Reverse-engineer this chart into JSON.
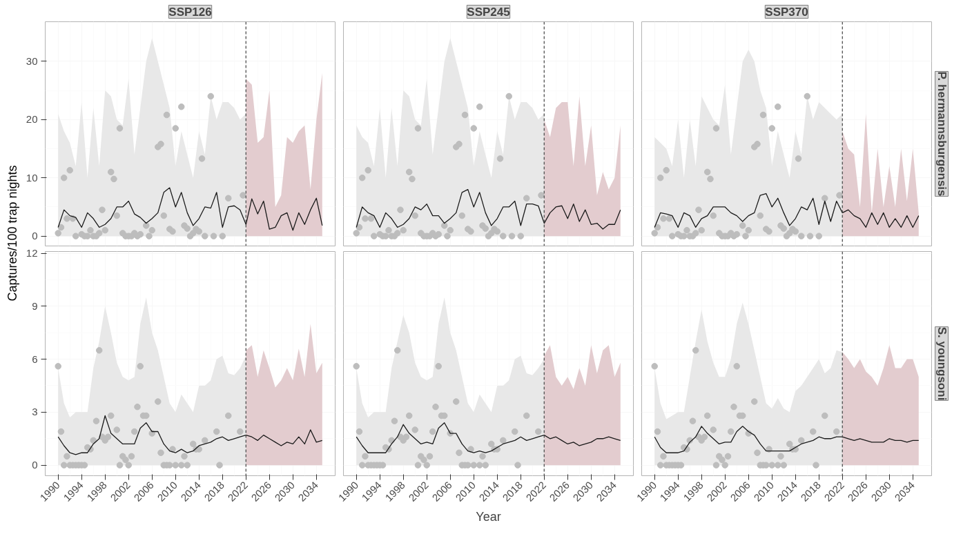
{
  "chart_data": [
    {
      "type": "line",
      "title": "SSP126",
      "ylabel": "Captures/100 trap nights",
      "xlim": [
        1987.8,
        2037.2
      ],
      "xticks": [
        1990,
        1994,
        1998,
        2002,
        2006,
        2010,
        2014,
        2018,
        2022,
        2026,
        2030,
        2034
      ],
      "ylim": [
        -1.7,
        36.8
      ],
      "yticks": [
        0,
        10,
        20,
        30
      ],
      "grid": true,
      "tick_labels": "y",
      "ref_lines": [
        {
          "axis": "x",
          "value": 2022,
          "color": "#4d4d4d",
          "line_style": "dashed"
        }
      ],
      "series": [
        {
          "type": "area",
          "color": "#e8e8e8",
          "x": [
            1990,
            1991,
            1992,
            1993,
            1994,
            1995,
            1996,
            1997,
            1998,
            1999,
            2000,
            2001,
            2002,
            2003,
            2004,
            2005,
            2006,
            2007,
            2008,
            2009,
            2010,
            2011,
            2012,
            2013,
            2014,
            2015,
            2016,
            2017,
            2018,
            2019,
            2020,
            2021,
            2022
          ],
          "values": [
            21,
            18,
            16,
            12,
            23,
            10,
            22,
            12,
            25,
            24,
            20,
            19,
            27,
            14,
            22,
            30,
            34,
            30,
            26,
            22,
            12,
            18,
            14,
            10,
            18,
            14,
            24,
            20,
            23,
            23,
            22,
            20,
            21
          ]
        },
        {
          "type": "area",
          "color": "#e3cccf",
          "x": [
            2022,
            2023,
            2024,
            2025,
            2026,
            2027,
            2028,
            2029,
            2030,
            2031,
            2032,
            2033,
            2034,
            2035
          ],
          "values": [
            27,
            26,
            16,
            17,
            25,
            5,
            7,
            17,
            16,
            18,
            19,
            8,
            20,
            28
          ]
        },
        {
          "type": "scatter",
          "color": "#bdbdbd",
          "x": [
            1990,
            1990.5,
            1991,
            1991.5,
            1992,
            1992.5,
            1993,
            1994,
            1994.5,
            1995,
            1995.5,
            1996,
            1996.5,
            1997,
            1997.5,
            1998,
            1999,
            1999.5,
            2000,
            2000.5,
            2001,
            2001.5,
            2002,
            2002.5,
            2003,
            2003.5,
            2004,
            2005,
            2005.5,
            2006,
            2007,
            2007.5,
            2008,
            2008.5,
            2009,
            2009.5,
            2010,
            2011,
            2011.5,
            2012,
            2012.5,
            2013,
            2013.5,
            2014,
            2014.5,
            2015,
            2016,
            2016.5,
            2018,
            2019,
            2021.5
          ],
          "values": [
            0.5,
            1.5,
            10,
            3,
            11.3,
            3,
            0,
            0.3,
            0,
            0,
            1,
            0,
            0,
            0.5,
            4.5,
            1,
            11,
            9.8,
            3.5,
            18.5,
            0.5,
            0,
            0,
            0,
            0.5,
            0,
            0.3,
            1.8,
            0,
            1,
            15.3,
            15.8,
            3.5,
            20.8,
            1.2,
            0.8,
            18.5,
            22.2,
            1.8,
            1.3,
            0,
            0.5,
            1.2,
            0.8,
            13.3,
            0,
            24,
            0,
            0,
            6.5,
            7
          ]
        },
        {
          "color": "#1a1a1a",
          "x": [
            1990,
            1991,
            1992,
            1993,
            1994,
            1995,
            1996,
            1997,
            1998,
            1999,
            2000,
            2001,
            2002,
            2003,
            2004,
            2005,
            2006,
            2007,
            2008,
            2009,
            2010,
            2011,
            2012,
            2013,
            2014,
            2015,
            2016,
            2017,
            2018,
            2019,
            2020,
            2021,
            2022,
            2023,
            2024,
            2025,
            2026,
            2027,
            2028,
            2029,
            2030,
            2031,
            2032,
            2033,
            2034,
            2035
          ],
          "values": [
            1.5,
            4.5,
            3.5,
            3.2,
            1.5,
            4,
            3,
            1.5,
            2,
            3,
            5,
            5,
            6,
            3.8,
            3.2,
            2.2,
            3,
            4,
            7.5,
            8.3,
            5,
            7.5,
            4,
            1.8,
            3,
            5,
            4.8,
            7.5,
            1.5,
            5,
            5.2,
            4.5,
            2,
            6.4,
            3.8,
            6,
            1.2,
            1.5,
            3.5,
            4,
            1,
            4,
            2,
            4.5,
            6.5,
            1.8
          ]
        }
      ]
    },
    {
      "type": "line",
      "title": "SSP245",
      "xlim": [
        1987.8,
        2037.2
      ],
      "xticks": [
        1990,
        1994,
        1998,
        2002,
        2006,
        2010,
        2014,
        2018,
        2022,
        2026,
        2030,
        2034
      ],
      "ylim": [
        -1.7,
        36.8
      ],
      "yticks": [
        0,
        10,
        20,
        30
      ],
      "grid": true,
      "tick_labels": false,
      "ref_lines": [
        {
          "axis": "x",
          "value": 2022,
          "color": "#4d4d4d",
          "line_style": "dashed"
        }
      ],
      "series": [
        {
          "type": "area",
          "color": "#e8e8e8",
          "x": [
            1990,
            1991,
            1992,
            1993,
            1994,
            1995,
            1996,
            1997,
            1998,
            1999,
            2000,
            2001,
            2002,
            2003,
            2004,
            2005,
            2006,
            2007,
            2008,
            2009,
            2010,
            2011,
            2012,
            2013,
            2014,
            2015,
            2016,
            2017,
            2018,
            2019,
            2020,
            2021,
            2022
          ],
          "values": [
            19,
            17,
            16,
            12,
            22,
            10,
            22,
            12,
            25,
            24,
            20,
            19,
            27,
            14,
            22,
            30,
            34,
            30,
            26,
            22,
            12,
            18,
            14,
            10,
            18,
            14,
            24,
            20,
            23,
            23,
            22,
            20,
            21
          ]
        },
        {
          "type": "area",
          "color": "#e3cccf",
          "x": [
            2022,
            2023,
            2024,
            2025,
            2026,
            2027,
            2028,
            2029,
            2030,
            2031,
            2032,
            2033,
            2034,
            2035
          ],
          "values": [
            20,
            17,
            22,
            23,
            23,
            12,
            24,
            12,
            19,
            7,
            11,
            8,
            10,
            19
          ]
        },
        {
          "type": "scatter",
          "color": "#bdbdbd",
          "x": [
            1990,
            1990.5,
            1991,
            1991.5,
            1992,
            1992.5,
            1993,
            1994,
            1994.5,
            1995,
            1995.5,
            1996,
            1996.5,
            1997,
            1997.5,
            1998,
            1999,
            1999.5,
            2000,
            2000.5,
            2001,
            2001.5,
            2002,
            2002.5,
            2003,
            2003.5,
            2004,
            2005,
            2005.5,
            2006,
            2007,
            2007.5,
            2008,
            2008.5,
            2009,
            2009.5,
            2010,
            2011,
            2011.5,
            2012,
            2012.5,
            2013,
            2013.5,
            2014,
            2014.5,
            2015,
            2016,
            2016.5,
            2018,
            2019,
            2021.5
          ],
          "values": [
            0.5,
            1.5,
            10,
            3,
            11.3,
            3,
            0,
            0.3,
            0,
            0,
            1,
            0,
            0,
            0.5,
            4.5,
            1,
            11,
            9.8,
            3.5,
            18.5,
            0.5,
            0,
            0,
            0,
            0.5,
            0,
            0.3,
            1.8,
            0,
            1,
            15.3,
            15.8,
            3.5,
            20.8,
            1.2,
            0.8,
            18.5,
            22.2,
            1.8,
            1.3,
            0,
            0.5,
            1.2,
            0.8,
            13.3,
            0,
            24,
            0,
            0,
            6.5,
            7
          ]
        },
        {
          "color": "#1a1a1a",
          "x": [
            1990,
            1991,
            1992,
            1993,
            1994,
            1995,
            1996,
            1997,
            1998,
            1999,
            2000,
            2001,
            2002,
            2003,
            2004,
            2005,
            2006,
            2007,
            2008,
            2009,
            2010,
            2011,
            2012,
            2013,
            2014,
            2015,
            2016,
            2017,
            2018,
            2019,
            2020,
            2021,
            2022,
            2023,
            2024,
            2025,
            2026,
            2027,
            2028,
            2029,
            2030,
            2031,
            2032,
            2033,
            2034,
            2035
          ],
          "values": [
            1.5,
            5,
            4,
            3.5,
            1.5,
            4,
            3,
            1.5,
            2,
            3,
            5,
            4.5,
            5.5,
            3.5,
            3.5,
            2.2,
            3,
            4,
            7.5,
            8,
            5,
            7.5,
            4,
            1.8,
            3,
            5,
            5,
            6,
            1.8,
            5.5,
            5.5,
            5.2,
            2.2,
            4,
            5,
            5.2,
            3,
            5.5,
            2.5,
            4.5,
            2,
            2.2,
            1.2,
            2,
            2,
            4.5
          ]
        }
      ]
    },
    {
      "type": "line",
      "title": "SSP370",
      "annotations": [
        "P. hermannsburgensis"
      ],
      "xlim": [
        1987.8,
        2037.2
      ],
      "xticks": [
        1990,
        1994,
        1998,
        2002,
        2006,
        2010,
        2014,
        2018,
        2022,
        2026,
        2030,
        2034
      ],
      "ylim": [
        -1.7,
        36.8
      ],
      "yticks": [
        0,
        10,
        20,
        30
      ],
      "grid": true,
      "tick_labels": false,
      "ref_lines": [
        {
          "axis": "x",
          "value": 2022,
          "color": "#4d4d4d",
          "line_style": "dashed"
        }
      ],
      "series": [
        {
          "type": "area",
          "color": "#e8e8e8",
          "x": [
            1990,
            1991,
            1992,
            1993,
            1994,
            1995,
            1996,
            1997,
            1998,
            1999,
            2000,
            2001,
            2002,
            2003,
            2004,
            2005,
            2006,
            2007,
            2008,
            2009,
            2010,
            2011,
            2012,
            2013,
            2014,
            2015,
            2016,
            2017,
            2018,
            2019,
            2020,
            2021,
            2022
          ],
          "values": [
            17,
            16,
            15,
            12,
            20,
            10,
            20,
            12,
            24,
            22,
            20,
            19,
            26,
            14,
            22,
            30,
            32,
            30,
            25,
            22,
            12,
            18,
            14,
            10,
            18,
            14,
            24,
            20,
            23,
            22,
            21,
            20,
            21
          ]
        },
        {
          "type": "area",
          "color": "#e3cccf",
          "x": [
            2022,
            2023,
            2024,
            2025,
            2026,
            2027,
            2028,
            2029,
            2030,
            2031,
            2032,
            2033,
            2034,
            2035
          ],
          "values": [
            18,
            15,
            14,
            5,
            21,
            4,
            15,
            5,
            12,
            5,
            15,
            6,
            15,
            4
          ]
        },
        {
          "type": "scatter",
          "color": "#bdbdbd",
          "x": [
            1990,
            1990.5,
            1991,
            1991.5,
            1992,
            1992.5,
            1993,
            1994,
            1994.5,
            1995,
            1995.5,
            1996,
            1996.5,
            1997,
            1997.5,
            1998,
            1999,
            1999.5,
            2000,
            2000.5,
            2001,
            2001.5,
            2002,
            2002.5,
            2003,
            2003.5,
            2004,
            2005,
            2005.5,
            2006,
            2007,
            2007.5,
            2008,
            2008.5,
            2009,
            2009.5,
            2010,
            2011,
            2011.5,
            2012,
            2012.5,
            2013,
            2013.5,
            2014,
            2014.5,
            2015,
            2016,
            2016.5,
            2018,
            2019,
            2021.5
          ],
          "values": [
            0.5,
            1.5,
            10,
            3,
            11.3,
            3,
            0,
            0.3,
            0,
            0,
            1,
            0,
            0,
            0.5,
            4.5,
            1,
            11,
            9.8,
            3.5,
            18.5,
            0.5,
            0,
            0,
            0,
            0.5,
            0,
            0.3,
            1.8,
            0,
            1,
            15.3,
            15.8,
            3.5,
            20.8,
            1.2,
            0.8,
            18.5,
            22.2,
            1.8,
            1.3,
            0,
            0.5,
            1.2,
            0.8,
            13.3,
            0,
            24,
            0,
            0,
            6.5,
            7
          ]
        },
        {
          "color": "#1a1a1a",
          "x": [
            1990,
            1991,
            1992,
            1993,
            1994,
            1995,
            1996,
            1997,
            1998,
            1999,
            2000,
            2001,
            2002,
            2003,
            2004,
            2005,
            2006,
            2007,
            2008,
            2009,
            2010,
            2011,
            2012,
            2013,
            2014,
            2015,
            2016,
            2017,
            2018,
            2019,
            2020,
            2021,
            2022,
            2023,
            2024,
            2025,
            2026,
            2027,
            2028,
            2029,
            2030,
            2031,
            2032,
            2033,
            2034,
            2035
          ],
          "values": [
            1.5,
            4,
            3.8,
            3.5,
            1.5,
            4,
            3.5,
            1.5,
            3,
            3.5,
            5,
            5,
            5,
            4,
            3.5,
            2.5,
            3.5,
            4,
            7,
            7.3,
            5,
            6.5,
            4,
            1.8,
            3,
            5,
            4.5,
            6.5,
            2,
            6,
            2.5,
            6,
            4,
            4.5,
            3.5,
            3,
            1.5,
            4,
            2,
            4,
            1.5,
            3,
            1.5,
            3.5,
            1.5,
            3.5
          ]
        }
      ]
    },
    {
      "type": "line",
      "xlim": [
        1987.8,
        2037.2
      ],
      "xticks": [
        1990,
        1994,
        1998,
        2002,
        2006,
        2010,
        2014,
        2018,
        2022,
        2026,
        2030,
        2034
      ],
      "ylim": [
        -0.6,
        12.1
      ],
      "yticks": [
        0,
        3,
        6,
        9,
        12
      ],
      "grid": true,
      "ref_lines": [
        {
          "axis": "x",
          "value": 2022,
          "color": "#4d4d4d",
          "line_style": "dashed"
        }
      ],
      "series": [
        {
          "type": "area",
          "color": "#e8e8e8",
          "x": [
            1990,
            1991,
            1992,
            1993,
            1994,
            1995,
            1996,
            1997,
            1998,
            1999,
            2000,
            2001,
            2002,
            2003,
            2004,
            2005,
            2006,
            2007,
            2008,
            2009,
            2010,
            2011,
            2012,
            2013,
            2014,
            2015,
            2016,
            2017,
            2018,
            2019,
            2020,
            2021,
            2022
          ],
          "values": [
            5.5,
            3.5,
            2.7,
            3,
            3,
            3,
            5.5,
            7,
            9,
            7.5,
            5.8,
            5,
            4.8,
            5,
            8,
            9.5,
            7.5,
            6.5,
            5,
            3.5,
            3,
            4,
            3.5,
            3,
            4.5,
            4.5,
            4.8,
            6,
            6.2,
            5.2,
            5.1,
            5.5,
            6.2
          ]
        },
        {
          "type": "area",
          "color": "#e3cccf",
          "x": [
            2022,
            2023,
            2024,
            2025,
            2026,
            2027,
            2028,
            2029,
            2030,
            2031,
            2032,
            2033,
            2034,
            2035
          ],
          "values": [
            6.5,
            6.8,
            5,
            6.5,
            5.5,
            4.4,
            4.8,
            5.5,
            4.8,
            6.6,
            5,
            8,
            5.2,
            5.8
          ]
        },
        {
          "type": "scatter",
          "color": "#bdbdbd",
          "x": [
            1990,
            1990.5,
            1991,
            1991.5,
            1992,
            1992.5,
            1993,
            1993.5,
            1994,
            1994.5,
            1995,
            1995.5,
            1996,
            1996.5,
            1997,
            1997.5,
            1998,
            1998.5,
            1999,
            2000,
            2000.5,
            2001,
            2001.5,
            2002,
            2002.5,
            2003,
            2003.5,
            2004,
            2004.5,
            2005,
            2006,
            2007,
            2007.5,
            2008,
            2008.5,
            2009,
            2009.5,
            2010,
            2011,
            2011.5,
            2012,
            2013,
            2013.5,
            2014,
            2015,
            2017,
            2017.5,
            2019,
            2021
          ],
          "values": [
            5.6,
            1.9,
            0,
            0.5,
            0,
            0,
            0,
            0,
            0,
            0,
            1,
            0.9,
            1.4,
            2.5,
            6.5,
            1.6,
            1.4,
            1.6,
            2.8,
            2,
            0,
            0.5,
            0.3,
            0,
            0.5,
            1.9,
            3.3,
            5.6,
            2.8,
            2.8,
            1.8,
            3.6,
            0.7,
            0,
            0,
            0,
            0.9,
            0,
            0,
            0.5,
            0,
            1.2,
            0.9,
            0.9,
            1.4,
            1.9,
            0,
            2.8,
            1.9
          ]
        },
        {
          "color": "#1a1a1a",
          "x": [
            1990,
            1991,
            1992,
            1993,
            1994,
            1995,
            1996,
            1997,
            1998,
            1999,
            2000,
            2001,
            2002,
            2003,
            2004,
            2005,
            2006,
            2007,
            2008,
            2009,
            2010,
            2011,
            2012,
            2013,
            2014,
            2015,
            2016,
            2017,
            2018,
            2019,
            2020,
            2021,
            2022,
            2023,
            2024,
            2025,
            2026,
            2027,
            2028,
            2029,
            2030,
            2031,
            2032,
            2033,
            2034,
            2035
          ],
          "values": [
            1.6,
            1.1,
            0.7,
            0.6,
            0.7,
            0.7,
            1.2,
            1.5,
            2.8,
            1.8,
            1.5,
            1.2,
            1.2,
            1.2,
            2.1,
            2.4,
            1.9,
            1.9,
            1.2,
            0.8,
            0.7,
            0.9,
            0.7,
            0.8,
            1.1,
            1.2,
            1.3,
            1.5,
            1.6,
            1.4,
            1.5,
            1.6,
            1.7,
            1.6,
            1.4,
            1.7,
            1.5,
            1.3,
            1.1,
            1.3,
            1.2,
            1.6,
            1.2,
            2.0,
            1.3,
            1.4
          ]
        }
      ]
    },
    {
      "type": "line",
      "xlabel": "Year",
      "xlim": [
        1987.8,
        2037.2
      ],
      "xticks": [
        1990,
        1994,
        1998,
        2002,
        2006,
        2010,
        2014,
        2018,
        2022,
        2026,
        2030,
        2034
      ],
      "ylim": [
        -0.6,
        12.1
      ],
      "yticks": [
        0,
        3,
        6,
        9,
        12
      ],
      "grid": true,
      "tick_labels": "x",
      "ref_lines": [
        {
          "axis": "x",
          "value": 2022,
          "color": "#4d4d4d",
          "line_style": "dashed"
        }
      ],
      "series": [
        {
          "type": "area",
          "color": "#e8e8e8",
          "x": [
            1990,
            1991,
            1992,
            1993,
            1994,
            1995,
            1996,
            1997,
            1998,
            1999,
            2000,
            2001,
            2002,
            2003,
            2004,
            2005,
            2006,
            2007,
            2008,
            2009,
            2010,
            2011,
            2012,
            2013,
            2014,
            2015,
            2016,
            2017,
            2018,
            2019,
            2020,
            2021,
            2022
          ],
          "values": [
            5.5,
            3.5,
            2.7,
            3,
            3,
            3,
            5.5,
            7,
            8.5,
            7.5,
            5.8,
            5,
            4.8,
            5,
            8,
            9.5,
            7.5,
            6.5,
            5,
            3.5,
            3,
            4,
            3.5,
            3,
            4.5,
            4.5,
            4.8,
            6,
            6.2,
            5.2,
            5.1,
            5.5,
            6
          ]
        },
        {
          "type": "area",
          "color": "#e3cccf",
          "x": [
            2022,
            2023,
            2024,
            2025,
            2026,
            2027,
            2028,
            2029,
            2030,
            2031,
            2032,
            2033,
            2034,
            2035
          ],
          "values": [
            6.2,
            6.8,
            5,
            4.5,
            5,
            4.3,
            5.5,
            4.5,
            6.8,
            5.2,
            6.5,
            6.8,
            5,
            5.8
          ]
        },
        {
          "type": "scatter",
          "color": "#bdbdbd",
          "x": [
            1990,
            1990.5,
            1991,
            1991.5,
            1992,
            1992.5,
            1993,
            1993.5,
            1994,
            1994.5,
            1995,
            1995.5,
            1996,
            1996.5,
            1997,
            1997.5,
            1998,
            1998.5,
            1999,
            2000,
            2000.5,
            2001,
            2001.5,
            2002,
            2002.5,
            2003,
            2003.5,
            2004,
            2004.5,
            2005,
            2006,
            2007,
            2007.5,
            2008,
            2008.5,
            2009,
            2009.5,
            2010,
            2011,
            2011.5,
            2012,
            2013,
            2013.5,
            2014,
            2015,
            2017,
            2017.5,
            2019,
            2021
          ],
          "values": [
            5.6,
            1.9,
            0,
            0.5,
            0,
            0,
            0,
            0,
            0,
            0,
            1,
            0.9,
            1.4,
            2.5,
            6.5,
            1.6,
            1.4,
            1.6,
            2.8,
            2,
            0,
            0.5,
            0.3,
            0,
            0.5,
            1.9,
            3.3,
            5.6,
            2.8,
            2.8,
            1.8,
            3.6,
            0.7,
            0,
            0,
            0,
            0.9,
            0,
            0,
            0.5,
            0,
            1.2,
            0.9,
            0.9,
            1.4,
            1.9,
            0,
            2.8,
            1.9
          ]
        },
        {
          "color": "#1a1a1a",
          "x": [
            1990,
            1991,
            1992,
            1993,
            1994,
            1995,
            1996,
            1997,
            1998,
            1999,
            2000,
            2001,
            2002,
            2003,
            2004,
            2005,
            2006,
            2007,
            2008,
            2009,
            2010,
            2011,
            2012,
            2013,
            2014,
            2015,
            2016,
            2017,
            2018,
            2019,
            2020,
            2021,
            2022,
            2023,
            2024,
            2025,
            2026,
            2027,
            2028,
            2029,
            2030,
            2031,
            2032,
            2033,
            2034,
            2035
          ],
          "values": [
            1.6,
            1.1,
            0.7,
            0.7,
            0.7,
            0.7,
            1.2,
            1.6,
            2.3,
            1.8,
            1.5,
            1.2,
            1.3,
            1.2,
            2.1,
            2.4,
            1.8,
            1.8,
            1.2,
            0.8,
            0.7,
            0.8,
            0.7,
            0.8,
            1.0,
            1.2,
            1.3,
            1.4,
            1.6,
            1.4,
            1.5,
            1.6,
            1.7,
            1.5,
            1.6,
            1.4,
            1.2,
            1.3,
            1.1,
            1.2,
            1.3,
            1.5,
            1.5,
            1.6,
            1.5,
            1.4
          ]
        }
      ]
    },
    {
      "type": "line",
      "annotations": [
        "S. youngsoni"
      ],
      "xlim": [
        1987.8,
        2037.2
      ],
      "xticks": [
        1990,
        1994,
        1998,
        2002,
        2006,
        2010,
        2014,
        2018,
        2022,
        2026,
        2030,
        2034
      ],
      "ylim": [
        -0.6,
        12.1
      ],
      "yticks": [
        0,
        3,
        6,
        9,
        12
      ],
      "grid": true,
      "tick_labels": "x",
      "ref_lines": [
        {
          "axis": "x",
          "value": 2022,
          "color": "#4d4d4d",
          "line_style": "dashed"
        }
      ],
      "series": [
        {
          "type": "area",
          "color": "#e8e8e8",
          "x": [
            1990,
            1991,
            1992,
            1993,
            1994,
            1995,
            1996,
            1997,
            1998,
            1999,
            2000,
            2001,
            2002,
            2003,
            2004,
            2005,
            2006,
            2007,
            2008,
            2009,
            2010,
            2011,
            2012,
            2013,
            2014,
            2015,
            2016,
            2017,
            2018,
            2019,
            2020,
            2021,
            2022
          ],
          "values": [
            5.5,
            3.5,
            2.6,
            2.8,
            3,
            3,
            5,
            7,
            8.8,
            7,
            5.8,
            5,
            5,
            6,
            8,
            9.2,
            8,
            6.5,
            5,
            3.5,
            3.2,
            3.8,
            3.2,
            3,
            4.2,
            4.5,
            5,
            5.5,
            6,
            5.2,
            5.5,
            6.5,
            6.4
          ]
        },
        {
          "type": "area",
          "color": "#e3cccf",
          "x": [
            2022,
            2023,
            2024,
            2025,
            2026,
            2027,
            2028,
            2029,
            2030,
            2031,
            2032,
            2033,
            2034,
            2035
          ],
          "values": [
            6.4,
            6,
            5.5,
            6,
            5.3,
            5,
            4.5,
            5.5,
            6.8,
            5.5,
            5.5,
            6,
            6,
            5
          ]
        },
        {
          "type": "scatter",
          "color": "#bdbdbd",
          "x": [
            1990,
            1990.5,
            1991,
            1991.5,
            1992,
            1992.5,
            1993,
            1993.5,
            1994,
            1994.5,
            1995,
            1995.5,
            1996,
            1996.5,
            1997,
            1997.5,
            1998,
            1998.5,
            1999,
            2000,
            2000.5,
            2001,
            2001.5,
            2002,
            2002.5,
            2003,
            2003.5,
            2004,
            2004.5,
            2005,
            2006,
            2007,
            2007.5,
            2008,
            2008.5,
            2009,
            2009.5,
            2010,
            2011,
            2011.5,
            2012,
            2013,
            2013.5,
            2014,
            2015,
            2017,
            2017.5,
            2019,
            2021
          ],
          "values": [
            5.6,
            1.9,
            0,
            0.5,
            0,
            0,
            0,
            0,
            0,
            0,
            1,
            0.9,
            1.4,
            2.5,
            6.5,
            1.6,
            1.4,
            1.6,
            2.8,
            2,
            0,
            0.5,
            0.3,
            0,
            0.5,
            1.9,
            3.3,
            5.6,
            2.8,
            2.8,
            1.8,
            3.6,
            0.7,
            0,
            0,
            0,
            0.9,
            0,
            0,
            0.5,
            0,
            1.2,
            0.9,
            0.9,
            1.4,
            1.9,
            0,
            2.8,
            1.9
          ]
        },
        {
          "color": "#1a1a1a",
          "x": [
            1990,
            1991,
            1992,
            1993,
            1994,
            1995,
            1996,
            1997,
            1998,
            1999,
            2000,
            2001,
            2002,
            2003,
            2004,
            2005,
            2006,
            2007,
            2008,
            2009,
            2010,
            2011,
            2012,
            2013,
            2014,
            2015,
            2016,
            2017,
            2018,
            2019,
            2020,
            2021,
            2022,
            2023,
            2024,
            2025,
            2026,
            2027,
            2028,
            2029,
            2030,
            2031,
            2032,
            2033,
            2034,
            2035
          ],
          "values": [
            1.6,
            1.0,
            0.7,
            0.7,
            0.7,
            0.8,
            1.3,
            1.6,
            2.2,
            1.8,
            1.5,
            1.2,
            1.3,
            1.3,
            1.9,
            2.2,
            1.9,
            1.7,
            1.2,
            0.8,
            0.8,
            0.8,
            0.8,
            0.8,
            1.0,
            1.2,
            1.3,
            1.4,
            1.6,
            1.5,
            1.5,
            1.6,
            1.6,
            1.5,
            1.4,
            1.5,
            1.4,
            1.3,
            1.3,
            1.3,
            1.5,
            1.4,
            1.4,
            1.3,
            1.4,
            1.4
          ]
        }
      ]
    }
  ]
}
